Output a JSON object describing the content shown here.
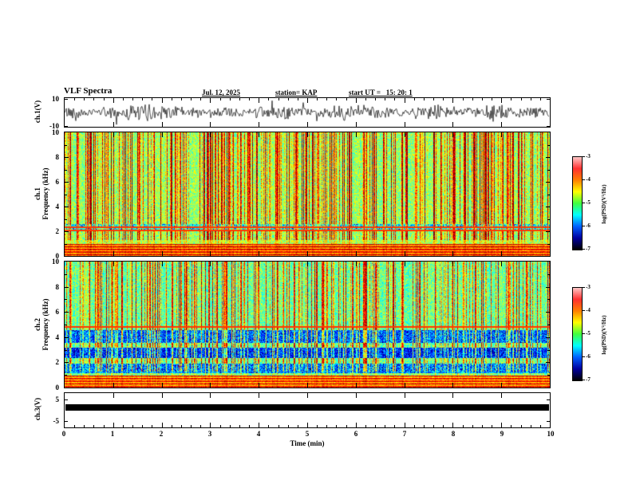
{
  "title": "VLF Spectra",
  "header": {
    "date": "Jul. 12, 2025",
    "station": "station= KAP",
    "start_ut": "start UT =   15: 20: 1"
  },
  "xaxis": {
    "label": "Time (min)",
    "ticks": [
      0,
      1,
      2,
      3,
      4,
      5,
      6,
      7,
      8,
      9,
      10
    ],
    "lim": [
      0,
      10
    ]
  },
  "panels": {
    "ch1_wave": {
      "ylabel": "ch.1(V)",
      "ytick_labels": [
        "10",
        "-10"
      ],
      "ylim": [
        -10,
        10
      ]
    },
    "ch1_spec": {
      "ylabel_lines": [
        "ch.1",
        "Frequency (kHz)"
      ],
      "ytick_values": [
        0,
        2,
        4,
        6,
        8,
        10
      ],
      "ylim": [
        0,
        10
      ]
    },
    "ch2_spec": {
      "ylabel_lines": [
        "ch.2",
        "Frequency (kHz)"
      ],
      "ytick_values": [
        0,
        2,
        4,
        6,
        8,
        10
      ],
      "ylim": [
        0,
        10
      ]
    },
    "ch3_wave": {
      "ylabel": "ch.3(V)",
      "ytick_labels": [
        "5",
        "-5"
      ],
      "ylim": [
        -5,
        5
      ]
    }
  },
  "colorbar": {
    "label": "log(PSD)(V²/Hz)",
    "tick_labels": [
      "-3",
      "-4",
      "-5",
      "-6",
      "-7"
    ],
    "lim": [
      -7,
      -3
    ],
    "gradient": [
      "#ffc8c8",
      "#ff3030",
      "#ff8000",
      "#ffff00",
      "#40ff40",
      "#00ffff",
      "#0060ff",
      "#0000a0",
      "#000000"
    ]
  },
  "chart_data": [
    {
      "type": "line",
      "name": "ch1_waveform",
      "ylabel": "ch.1(V)",
      "xlabel": "Time (min)",
      "xlim": [
        0,
        10
      ],
      "ylim": [
        -10,
        10
      ],
      "seed": 42,
      "noise_amp_v": 4,
      "spike_amp_v": 9,
      "description": "Dense broadband noise waveform centered on 0 V, typical excursions ±4 V with frequent bursts toward ±9 V across the full 10 minutes."
    },
    {
      "type": "heatmap",
      "name": "ch1_spectrogram",
      "xlabel": "Time (min)",
      "ylabel": "Frequency (kHz)",
      "xlim": [
        0,
        10
      ],
      "ylim": [
        0,
        10
      ],
      "zlabel": "log(PSD)(V²/Hz)",
      "zlim": [
        -7,
        -3
      ],
      "seed": 7,
      "base_level": 0.55,
      "streak_density": 0.35,
      "bottom_band": {
        "f_max": 1.0,
        "level": 0.8
      },
      "blue_bands": [
        [
          2.0,
          2.6,
          0.12
        ]
      ],
      "h_lines": [
        2.1,
        2.35
      ],
      "description": "VLF spectrogram: orange-red striped band below ~1 kHz, yellow-green background above, dense red vertical broadband sferic streaks 1-10 kHz, cyan/blue speckle band near 2-2.6 kHz, thin horizontal enhancement lines near 2.1 and 2.35 kHz."
    },
    {
      "type": "heatmap",
      "name": "ch2_spectrogram",
      "xlabel": "Time (min)",
      "ylabel": "Frequency (kHz)",
      "xlim": [
        0,
        10
      ],
      "ylim": [
        0,
        10
      ],
      "zlabel": "log(PSD)(V²/Hz)",
      "zlim": [
        -7,
        -3
      ],
      "seed": 13,
      "base_level": 0.5,
      "streak_density": 0.32,
      "bottom_band": {
        "f_max": 1.0,
        "level": 0.78
      },
      "blue_bands": [
        [
          1.2,
          1.9,
          0.2
        ],
        [
          2.4,
          3.2,
          0.28
        ],
        [
          3.6,
          4.6,
          0.22
        ]
      ],
      "h_lines": [
        4.85
      ],
      "description": "Like ch.1 but with stronger cyan/dark-blue horizontal bands near 1.2-1.9, 2.4-3.2 and 3.6-4.6 kHz; orange-red striped band below 1 kHz; red vertical sferic streaks throughout."
    },
    {
      "type": "line",
      "name": "ch3_waveform",
      "ylabel": "ch.3(V)",
      "xlabel": "Time (min)",
      "xlim": [
        0,
        10
      ],
      "ylim": [
        -5,
        5
      ],
      "bar_frac_top": 0.32,
      "bar_frac_height": 0.19,
      "description": "Saturated/clipped constant trace drawn as a thick solid black horizontal band spanning the full 10 minutes at roughly +1 to +3 V."
    }
  ]
}
